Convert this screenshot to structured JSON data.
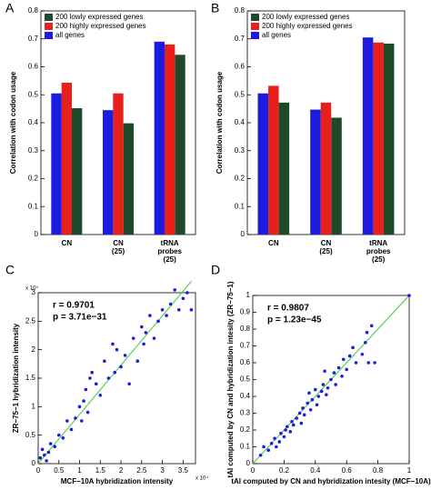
{
  "chart_data": [
    {
      "type": "bar",
      "panel_label": "A",
      "ylabel": "Correlation with codon usage",
      "categories": [
        "CN",
        "CN\n(25)",
        "tRNA\nprobes\n(25)"
      ],
      "series": [
        {
          "name": "200 lowly expressed genes",
          "color": "#1f4a2a",
          "values": [
            0.452,
            0.398,
            0.643
          ]
        },
        {
          "name": "200 highly expressed genes",
          "color": "#e8201c",
          "values": [
            0.543,
            0.505,
            0.68
          ]
        },
        {
          "name": "all genes",
          "color": "#1c1ce0",
          "values": [
            0.505,
            0.445,
            0.69
          ]
        }
      ],
      "ylim": [
        0,
        0.8
      ],
      "yticks": [
        0,
        0.1,
        0.2,
        0.3,
        0.4,
        0.5,
        0.6,
        0.7,
        0.8
      ],
      "legend": "upper left"
    },
    {
      "type": "bar",
      "panel_label": "B",
      "ylabel": "Correlation with codon usage",
      "categories": [
        "CN",
        "CN\n(25)",
        "tRNA\nprobes\n(25)"
      ],
      "series": [
        {
          "name": "200 lowly expressed genes",
          "color": "#1f4a2a",
          "values": [
            0.472,
            0.418,
            0.683
          ]
        },
        {
          "name": "200 highly expressed genes",
          "color": "#e8201c",
          "values": [
            0.532,
            0.472,
            0.687
          ]
        },
        {
          "name": "all genes",
          "color": "#1c1ce0",
          "values": [
            0.505,
            0.447,
            0.705
          ]
        }
      ],
      "ylim": [
        0,
        0.8
      ],
      "yticks": [
        0,
        0.1,
        0.2,
        0.3,
        0.4,
        0.5,
        0.6,
        0.7,
        0.8
      ],
      "legend": "upper left"
    },
    {
      "type": "scatter",
      "panel_label": "C",
      "xlabel": "MCF−10A hybridization intensity",
      "ylabel": "ZR−75−1 hybridization intensity",
      "annotations": [
        "r = 0.9701",
        "p = 3.71e−31"
      ],
      "x_multiplier": "x 10⁴",
      "y_multiplier": "x 10⁴",
      "color": "#1c1ce0",
      "fit_color": "#3cc83c",
      "x": [
        500,
        1000,
        1500,
        2000,
        2500,
        3000,
        4000,
        5000,
        6000,
        7000,
        8000,
        9000,
        10000,
        10500,
        11000,
        11500,
        12000,
        12500,
        13000,
        14000,
        15000,
        16000,
        17000,
        18000,
        18500,
        19000,
        20000,
        21000,
        22000,
        23000,
        24000,
        25000,
        25500,
        26000,
        27000,
        28000,
        29000,
        30000,
        31000,
        32000,
        33000,
        34000,
        35000,
        36000,
        37000
      ],
      "y": [
        1000,
        2500,
        1500,
        500,
        2000,
        3500,
        3000,
        5000,
        4500,
        7500,
        6000,
        8000,
        10000,
        7500,
        11000,
        13000,
        9000,
        15000,
        16000,
        14000,
        12000,
        18000,
        15000,
        21000,
        16000,
        20000,
        17000,
        19000,
        14000,
        22000,
        18000,
        24000,
        21000,
        23000,
        26000,
        22000,
        25000,
        27000,
        26000,
        28000,
        30500,
        27000,
        29000,
        30000,
        27000
      ],
      "fit_line": {
        "x": [
          0,
          37000
        ],
        "y": [
          0,
          32000
        ]
      },
      "xlim": [
        0,
        38000
      ],
      "ylim": [
        0,
        30000
      ],
      "xticks": [
        {
          "value": 0,
          "label": "0"
        },
        {
          "value": 5000,
          "label": "0.5"
        },
        {
          "value": 10000,
          "label": "1"
        },
        {
          "value": 15000,
          "label": "1.5"
        },
        {
          "value": 20000,
          "label": "2"
        },
        {
          "value": 25000,
          "label": "2.5"
        },
        {
          "value": 30000,
          "label": "3"
        },
        {
          "value": 35000,
          "label": "3.5"
        }
      ],
      "yticks": [
        {
          "value": 0,
          "label": "0"
        },
        {
          "value": 5000,
          "label": "0.5"
        },
        {
          "value": 10000,
          "label": "1"
        },
        {
          "value": 15000,
          "label": "1.5"
        },
        {
          "value": 20000,
          "label": "2"
        },
        {
          "value": 25000,
          "label": "2.5"
        },
        {
          "value": 30000,
          "label": "3"
        }
      ]
    },
    {
      "type": "scatter",
      "panel_label": "D",
      "xlabel": "tAI computed by CN and hybridization intesity (MCF−10A)",
      "ylabel": "tAI computed by CN and hybridization intesity (ZR−75−1)",
      "annotations": [
        "r = 0.9807",
        "p = 1.23e−45"
      ],
      "color": "#1c1ce0",
      "fit_color": "#3cc83c",
      "x": [
        0.05,
        0.07,
        0.1,
        0.12,
        0.14,
        0.15,
        0.17,
        0.18,
        0.2,
        0.21,
        0.22,
        0.24,
        0.25,
        0.26,
        0.28,
        0.3,
        0.31,
        0.32,
        0.33,
        0.35,
        0.36,
        0.37,
        0.38,
        0.4,
        0.41,
        0.42,
        0.44,
        0.45,
        0.46,
        0.47,
        0.48,
        0.5,
        0.52,
        0.53,
        0.55,
        0.57,
        0.58,
        0.6,
        0.62,
        0.64,
        0.66,
        0.7,
        0.72,
        0.73,
        0.74,
        0.76,
        0.78,
        1
      ],
      "y": [
        0.05,
        0.1,
        0.08,
        0.12,
        0.15,
        0.1,
        0.13,
        0.18,
        0.16,
        0.2,
        0.22,
        0.19,
        0.25,
        0.23,
        0.27,
        0.3,
        0.24,
        0.33,
        0.29,
        0.36,
        0.42,
        0.32,
        0.38,
        0.44,
        0.35,
        0.4,
        0.43,
        0.47,
        0.55,
        0.41,
        0.45,
        0.5,
        0.54,
        0.47,
        0.57,
        0.52,
        0.62,
        0.56,
        0.64,
        0.69,
        0.6,
        0.65,
        0.72,
        0.78,
        0.6,
        0.82,
        0.6,
        1
      ],
      "fit_line": {
        "x": [
          0,
          1
        ],
        "y": [
          0,
          1
        ]
      },
      "xlim": [
        0,
        1
      ],
      "ylim": [
        0,
        1
      ],
      "xticks": [
        0,
        0.2,
        0.4,
        0.6,
        0.8,
        1
      ],
      "yticks": [
        0,
        0.1,
        0.2,
        0.3,
        0.4,
        0.5,
        0.6,
        0.7,
        0.8,
        0.9,
        1
      ]
    }
  ]
}
